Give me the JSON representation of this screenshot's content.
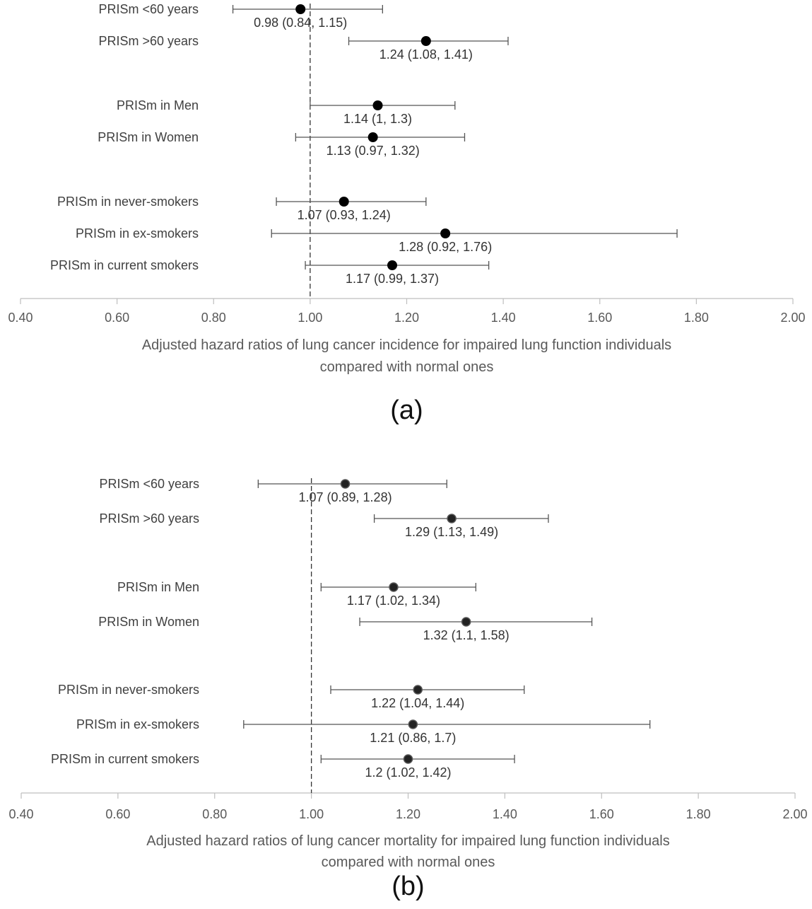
{
  "chart_data": [
    {
      "type": "forest",
      "panel_label": "(a)",
      "xlabel_lines": [
        "Adjusted hazard ratios of lung cancer incidence for impaired lung function individuals",
        "compared with normal ones"
      ],
      "xlim": [
        0.4,
        2.0
      ],
      "ticks": [
        "0.40",
        "0.60",
        "0.80",
        "1.00",
        "1.20",
        "1.40",
        "1.60",
        "1.80",
        "2.00"
      ],
      "reference_line": 1.0,
      "rows": [
        {
          "label": "PRISm <60 years",
          "hr": 0.98,
          "lo": 0.84,
          "hi": 1.15,
          "text": "0.98 (0.84, 1.15)"
        },
        {
          "label": "PRISm >60 years",
          "hr": 1.24,
          "lo": 1.08,
          "hi": 1.41,
          "text": "1.24 (1.08, 1.41)"
        },
        {
          "label": "PRISm in Men",
          "hr": 1.14,
          "lo": 1.0,
          "hi": 1.3,
          "text": "1.14 (1, 1.3)"
        },
        {
          "label": "PRISm in Women",
          "hr": 1.13,
          "lo": 0.97,
          "hi": 1.32,
          "text": "1.13 (0.97, 1.32)"
        },
        {
          "label": "PRISm in never-smokers",
          "hr": 1.07,
          "lo": 0.93,
          "hi": 1.24,
          "text": "1.07 (0.93, 1.24)"
        },
        {
          "label": "PRISm in ex-smokers",
          "hr": 1.28,
          "lo": 0.92,
          "hi": 1.76,
          "text": "1.28 (0.92, 1.76)"
        },
        {
          "label": "PRISm in current smokers",
          "hr": 1.17,
          "lo": 0.99,
          "hi": 1.37,
          "text": "1.17 (0.99, 1.37)"
        }
      ]
    },
    {
      "type": "forest",
      "panel_label": "(b)",
      "xlabel_lines": [
        "Adjusted hazard ratios of lung cancer mortality for impaired lung function individuals",
        "compared with normal ones"
      ],
      "xlim": [
        0.4,
        2.0
      ],
      "ticks": [
        "0.40",
        "0.60",
        "0.80",
        "1.00",
        "1.20",
        "1.40",
        "1.60",
        "1.80",
        "2.00"
      ],
      "reference_line": 1.0,
      "rows": [
        {
          "label": "PRISm <60 years",
          "hr": 1.07,
          "lo": 0.89,
          "hi": 1.28,
          "text": "1.07 (0.89, 1.28)"
        },
        {
          "label": "PRISm >60 years",
          "hr": 1.29,
          "lo": 1.13,
          "hi": 1.49,
          "text": "1.29 (1.13, 1.49)"
        },
        {
          "label": "PRISm in Men",
          "hr": 1.17,
          "lo": 1.02,
          "hi": 1.34,
          "text": "1.17 (1.02, 1.34)"
        },
        {
          "label": "PRISm in Women",
          "hr": 1.32,
          "lo": 1.1,
          "hi": 1.58,
          "text": "1.32 (1.1, 1.58)"
        },
        {
          "label": "PRISm in never-smokers",
          "hr": 1.22,
          "lo": 1.04,
          "hi": 1.44,
          "text": "1.22 (1.04, 1.44)"
        },
        {
          "label": "PRISm in ex-smokers",
          "hr": 1.21,
          "lo": 0.86,
          "hi": 1.7,
          "text": "1.21 (0.86, 1.7)"
        },
        {
          "label": "PRISm in current smokers",
          "hr": 1.2,
          "lo": 1.02,
          "hi": 1.42,
          "text": "1.2 (1.02, 1.42)"
        }
      ]
    }
  ]
}
